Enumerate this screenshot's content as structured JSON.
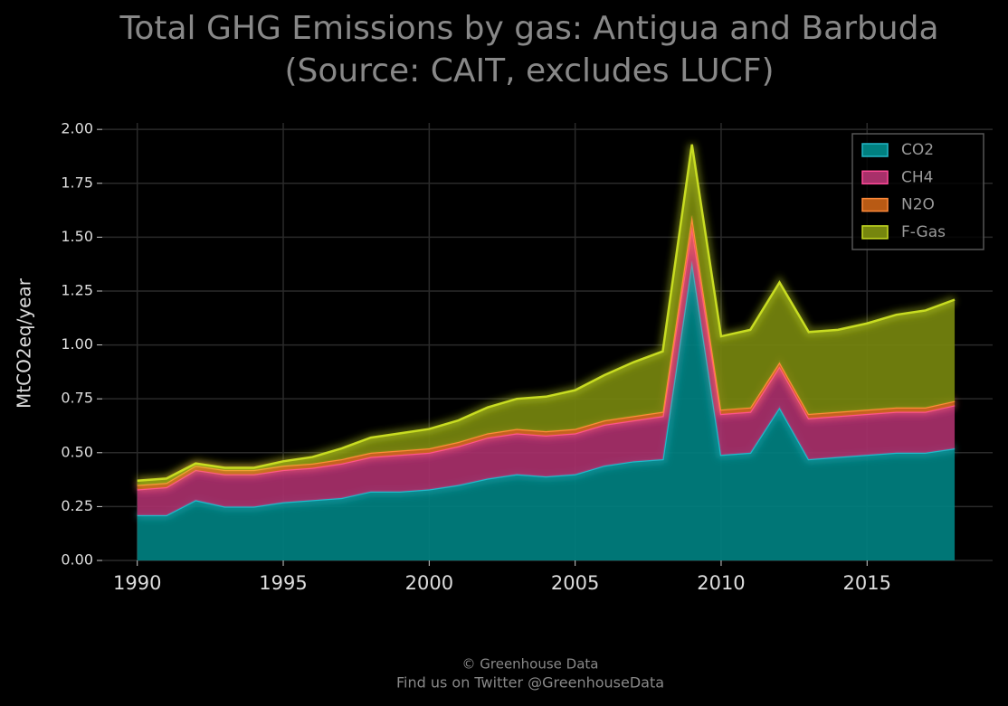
{
  "chart_data": {
    "type": "stacked_area",
    "title": "Total GHG Emissions by gas: Antigua and Barbuda",
    "subtitle": "(Source: CAIT, excludes LUCF)",
    "y_label": "MtCO2eq/year",
    "footer": [
      "© Greenhouse Data",
      "Find us on Twitter @GreenhouseData"
    ],
    "x": [
      1990,
      1991,
      1992,
      1993,
      1994,
      1995,
      1996,
      1997,
      1998,
      1999,
      2000,
      2001,
      2002,
      2003,
      2004,
      2005,
      2006,
      2007,
      2008,
      2009,
      2010,
      2011,
      2012,
      2013,
      2014,
      2015,
      2016,
      2017,
      2018
    ],
    "series": [
      {
        "name": "CO2",
        "color": "#008080",
        "line_color": "#22b8c8",
        "values": [
          0.21,
          0.21,
          0.28,
          0.25,
          0.25,
          0.27,
          0.28,
          0.29,
          0.32,
          0.32,
          0.33,
          0.35,
          0.38,
          0.4,
          0.39,
          0.4,
          0.44,
          0.46,
          0.47,
          1.39,
          0.49,
          0.5,
          0.71,
          0.47,
          0.48,
          0.49,
          0.5,
          0.5,
          0.52
        ]
      },
      {
        "name": "CH4",
        "color": "#a8306a",
        "line_color": "#ff4a98",
        "values": [
          0.12,
          0.13,
          0.14,
          0.15,
          0.15,
          0.15,
          0.15,
          0.16,
          0.16,
          0.17,
          0.17,
          0.18,
          0.19,
          0.19,
          0.19,
          0.19,
          0.19,
          0.19,
          0.2,
          0.16,
          0.19,
          0.19,
          0.19,
          0.19,
          0.19,
          0.19,
          0.19,
          0.19,
          0.2
        ]
      },
      {
        "name": "N2O",
        "color": "#b85a14",
        "line_color": "#ff8a3a",
        "values": [
          0.02,
          0.02,
          0.02,
          0.02,
          0.02,
          0.02,
          0.02,
          0.02,
          0.02,
          0.02,
          0.02,
          0.02,
          0.02,
          0.02,
          0.02,
          0.02,
          0.02,
          0.02,
          0.02,
          0.05,
          0.02,
          0.02,
          0.02,
          0.02,
          0.02,
          0.02,
          0.02,
          0.02,
          0.02
        ]
      },
      {
        "name": "F-Gas",
        "color": "#76860e",
        "line_color": "#c8dc22",
        "values": [
          0.02,
          0.02,
          0.01,
          0.01,
          0.01,
          0.02,
          0.03,
          0.05,
          0.07,
          0.08,
          0.09,
          0.1,
          0.12,
          0.14,
          0.16,
          0.18,
          0.21,
          0.25,
          0.28,
          0.33,
          0.34,
          0.36,
          0.37,
          0.38,
          0.38,
          0.4,
          0.43,
          0.45,
          0.47
        ]
      }
    ],
    "xlim": [
      1988.8,
      2019.3
    ],
    "xticks": [
      1990,
      1995,
      2000,
      2005,
      2010,
      2015
    ],
    "ylim": [
      0,
      2.03
    ],
    "yticks": [
      {
        "value": 0,
        "label": "0.00"
      },
      {
        "value": 0.25,
        "label": "0.25"
      },
      {
        "value": 0.5,
        "label": "0.50"
      },
      {
        "value": 0.75,
        "label": "0.75"
      },
      {
        "value": 1,
        "label": "1.00"
      },
      {
        "value": 1.25,
        "label": "1.25"
      },
      {
        "value": 1.5,
        "label": "1.50"
      },
      {
        "value": 1.75,
        "label": "1.75"
      },
      {
        "value": 2,
        "label": "2.00"
      }
    ],
    "grid": true,
    "legend": "upper right"
  }
}
